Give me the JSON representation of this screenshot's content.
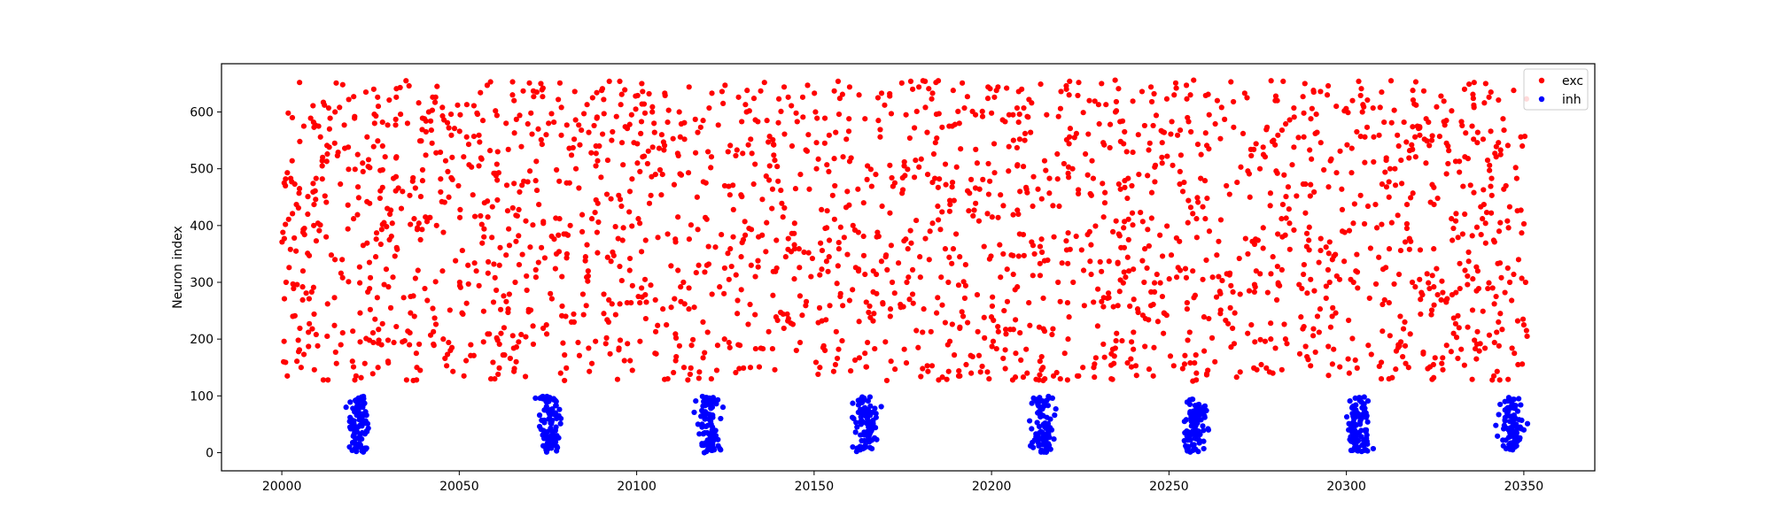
{
  "chart_data": {
    "type": "scatter",
    "title": "",
    "xlabel": "",
    "ylabel": "Neuron index",
    "xlim": [
      19983,
      20370
    ],
    "ylim": [
      -32,
      685
    ],
    "x_ticks": [
      20000,
      20050,
      20100,
      20150,
      20200,
      20250,
      20300,
      20350
    ],
    "y_ticks": [
      0,
      100,
      200,
      300,
      400,
      500,
      600
    ],
    "grid": false,
    "legend_position": "top-right",
    "series": [
      {
        "name": "exc",
        "color": "#ff0000",
        "neuron_range": [
          126,
          656
        ],
        "t_range": [
          20000,
          20351
        ],
        "points": [
          {
            "x": 20000.5,
            "y": 160
          },
          {
            "x": 20001.2,
            "y": 300
          },
          {
            "x": 20001.8,
            "y": 598
          },
          {
            "x": 20002.5,
            "y": 483
          },
          {
            "x": 20003.1,
            "y": 240
          },
          {
            "x": 20004.0,
            "y": 355
          },
          {
            "x": 20005.0,
            "y": 652
          },
          {
            "x": 20006.2,
            "y": 575
          },
          {
            "x": 20007.5,
            "y": 212
          },
          {
            "x": 20009.0,
            "y": 400
          },
          {
            "x": 20010.1,
            "y": 188
          },
          {
            "x": 20011.5,
            "y": 520
          },
          {
            "x": 20013.0,
            "y": 128
          },
          {
            "x": 20015.0,
            "y": 600
          },
          {
            "x": 20017.0,
            "y": 340
          },
          {
            "x": 20020.0,
            "y": 214
          },
          {
            "x": 20024.0,
            "y": 442
          },
          {
            "x": 20027.0,
            "y": 626
          },
          {
            "x": 20030.0,
            "y": 158
          },
          {
            "x": 20035.0,
            "y": 655
          },
          {
            "x": 20041.0,
            "y": 268
          },
          {
            "x": 20048.0,
            "y": 520
          },
          {
            "x": 20055.0,
            "y": 598
          },
          {
            "x": 20060.0,
            "y": 130
          },
          {
            "x": 20066.0,
            "y": 372
          },
          {
            "x": 20073.0,
            "y": 650
          },
          {
            "x": 20080.0,
            "y": 240
          },
          {
            "x": 20088.0,
            "y": 576
          },
          {
            "x": 20095.0,
            "y": 184
          },
          {
            "x": 20104.0,
            "y": 453
          },
          {
            "x": 20112.0,
            "y": 600
          },
          {
            "x": 20120.0,
            "y": 212
          },
          {
            "x": 20128.0,
            "y": 313
          },
          {
            "x": 20136.0,
            "y": 652
          },
          {
            "x": 20145.0,
            "y": 180
          },
          {
            "x": 20153.0,
            "y": 545
          },
          {
            "x": 20160.0,
            "y": 268
          },
          {
            "x": 20168.0,
            "y": 625
          },
          {
            "x": 20176.0,
            "y": 158
          },
          {
            "x": 20185.0,
            "y": 410
          },
          {
            "x": 20192.0,
            "y": 240
          },
          {
            "x": 20200.0,
            "y": 598
          },
          {
            "x": 20208.0,
            "y": 460
          },
          {
            "x": 20215.0,
            "y": 130
          },
          {
            "x": 20223.0,
            "y": 300
          },
          {
            "x": 20231.0,
            "y": 650
          },
          {
            "x": 20240.0,
            "y": 212
          },
          {
            "x": 20248.0,
            "y": 520
          },
          {
            "x": 20256.0,
            "y": 158
          },
          {
            "x": 20264.0,
            "y": 372
          },
          {
            "x": 20272.0,
            "y": 625
          },
          {
            "x": 20280.0,
            "y": 184
          },
          {
            "x": 20288.0,
            "y": 598
          },
          {
            "x": 20296.0,
            "y": 240
          },
          {
            "x": 20304.0,
            "y": 453
          },
          {
            "x": 20312.0,
            "y": 130
          },
          {
            "x": 20320.0,
            "y": 575
          },
          {
            "x": 20328.0,
            "y": 268
          },
          {
            "x": 20336.0,
            "y": 652
          },
          {
            "x": 20343.0,
            "y": 188
          },
          {
            "x": 20348.0,
            "y": 483
          },
          {
            "x": 20350.5,
            "y": 300
          }
        ]
      },
      {
        "name": "inh",
        "color": "#0000ff",
        "bursts_t": [
          20021.5,
          20075.5,
          20120.5,
          20164.5,
          20214.5,
          20257.5,
          20303.5,
          20346.5
        ],
        "neuron_range": [
          0,
          99
        ],
        "points": [
          {
            "x": 20021.0,
            "y": 2
          },
          {
            "x": 20022.0,
            "y": 48
          },
          {
            "x": 20023.0,
            "y": 95
          },
          {
            "x": 20075.0,
            "y": 10
          },
          {
            "x": 20076.0,
            "y": 55
          },
          {
            "x": 20074.5,
            "y": 90
          },
          {
            "x": 20120.0,
            "y": 5
          },
          {
            "x": 20121.0,
            "y": 50
          },
          {
            "x": 20119.5,
            "y": 97
          },
          {
            "x": 20164.0,
            "y": 8
          },
          {
            "x": 20165.0,
            "y": 60
          },
          {
            "x": 20163.5,
            "y": 88
          },
          {
            "x": 20214.0,
            "y": 3
          },
          {
            "x": 20215.0,
            "y": 45
          },
          {
            "x": 20213.5,
            "y": 92
          },
          {
            "x": 20257.0,
            "y": 6
          },
          {
            "x": 20258.0,
            "y": 52
          },
          {
            "x": 20256.5,
            "y": 94
          },
          {
            "x": 20303.0,
            "y": 4
          },
          {
            "x": 20304.0,
            "y": 58
          },
          {
            "x": 20302.5,
            "y": 96
          },
          {
            "x": 20346.0,
            "y": 7
          },
          {
            "x": 20347.0,
            "y": 49
          },
          {
            "x": 20345.5,
            "y": 91
          }
        ]
      }
    ],
    "legend": [
      "exc",
      "inh"
    ]
  }
}
